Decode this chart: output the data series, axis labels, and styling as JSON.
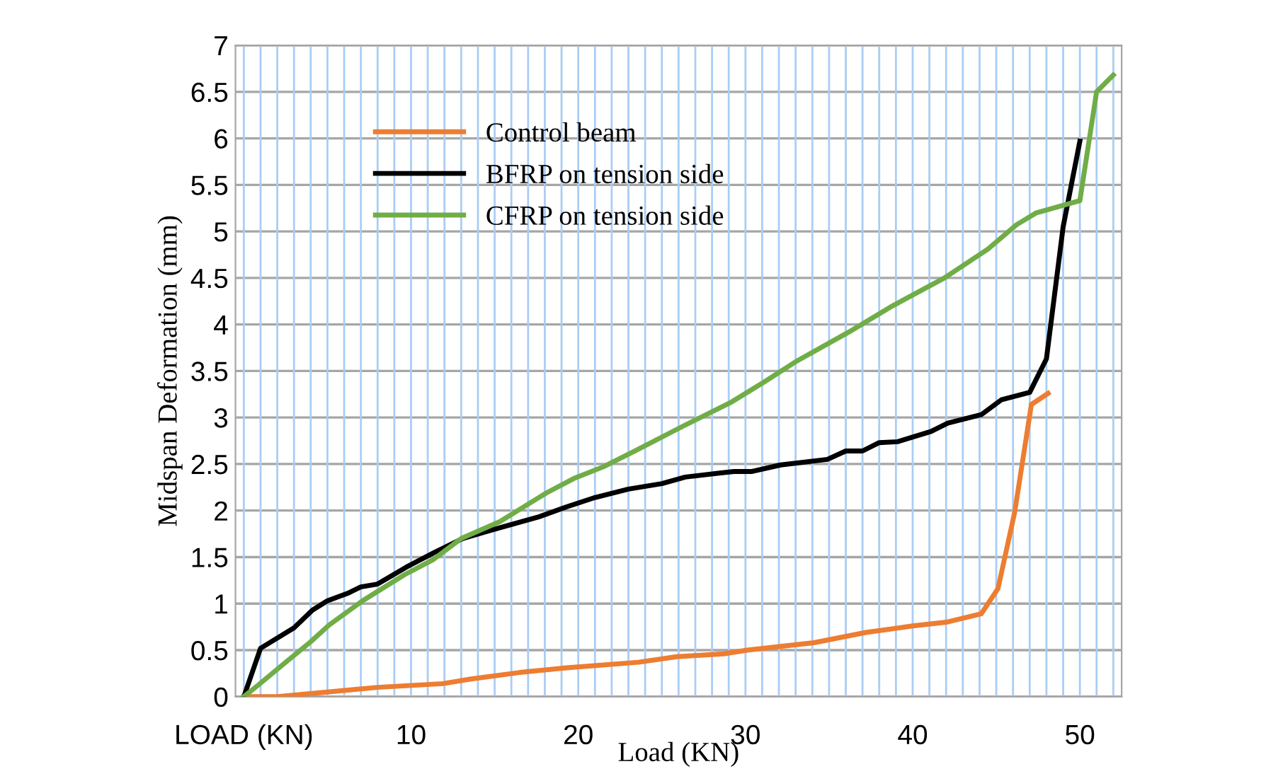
{
  "chart_data": {
    "type": "line",
    "xlabel": "Load (KN)",
    "ylabel": "Midspan Deformation (mm)",
    "xlim": [
      -0.5,
      52.5
    ],
    "xticks": [
      {
        "value": 0,
        "label": "LOAD (KN)"
      },
      10,
      20,
      30,
      40,
      50
    ],
    "ylim": [
      0,
      7
    ],
    "yticks": [
      0,
      0.5,
      1,
      1.5,
      2,
      2.5,
      3,
      3.5,
      4,
      4.5,
      5,
      5.5,
      6,
      6.5,
      7
    ],
    "grid": true,
    "legend": "top left",
    "marker": "none",
    "line_style": "solid",
    "series": [
      {
        "name": "Control beam",
        "color": "#ed7d31",
        "x": [
          0,
          2,
          5,
          8,
          11.9,
          13.6,
          16.5,
          19.3,
          23.6,
          25.9,
          28.7,
          30.1,
          34.1,
          37.2,
          40,
          42,
          44.1,
          45.1,
          46.1,
          47.1,
          48.1
        ],
        "values": [
          0,
          0,
          0.05,
          0.1,
          0.14,
          0.19,
          0.26,
          0.31,
          0.37,
          0.43,
          0.46,
          0.5,
          0.58,
          0.69,
          0.76,
          0.8,
          0.89,
          1.16,
          1.98,
          3.14,
          3.26
        ]
      },
      {
        "name": "BFRP on tension side",
        "color": "#000000",
        "x": [
          0,
          1,
          3,
          4.1,
          5,
          6.2,
          7,
          8,
          9.7,
          11.4,
          13.1,
          14.8,
          17.6,
          19.3,
          21,
          23,
          25,
          26.4,
          29.3,
          30.4,
          32.1,
          34.9,
          36,
          37,
          38,
          39.1,
          41.1,
          42.1,
          44.1,
          45.3,
          47,
          48,
          49,
          50
        ],
        "values": [
          0,
          0.52,
          0.74,
          0.93,
          1.03,
          1.11,
          1.18,
          1.21,
          1.39,
          1.55,
          1.7,
          1.79,
          1.93,
          2.04,
          2.14,
          2.23,
          2.29,
          2.36,
          2.42,
          2.42,
          2.49,
          2.55,
          2.64,
          2.64,
          2.73,
          2.74,
          2.85,
          2.94,
          3.03,
          3.19,
          3.27,
          3.63,
          5.05,
          5.97
        ]
      },
      {
        "name": "CFRP on tension side",
        "color": "#70ad47",
        "x": [
          0,
          0.9,
          2.3,
          4,
          5.1,
          7.1,
          9.6,
          11.3,
          13,
          15.3,
          18.1,
          19.8,
          21.5,
          23.5,
          26.3,
          29.2,
          31.1,
          33.1,
          36.2,
          38.8,
          41.9,
          44.5,
          46.2,
          47.4,
          50,
          51,
          52
        ],
        "values": [
          0,
          0.13,
          0.34,
          0.59,
          0.77,
          1.03,
          1.31,
          1.47,
          1.7,
          1.88,
          2.19,
          2.35,
          2.47,
          2.65,
          2.91,
          3.17,
          3.38,
          3.61,
          3.92,
          4.2,
          4.5,
          4.81,
          5.07,
          5.2,
          5.33,
          6.5,
          6.68
        ]
      }
    ]
  }
}
